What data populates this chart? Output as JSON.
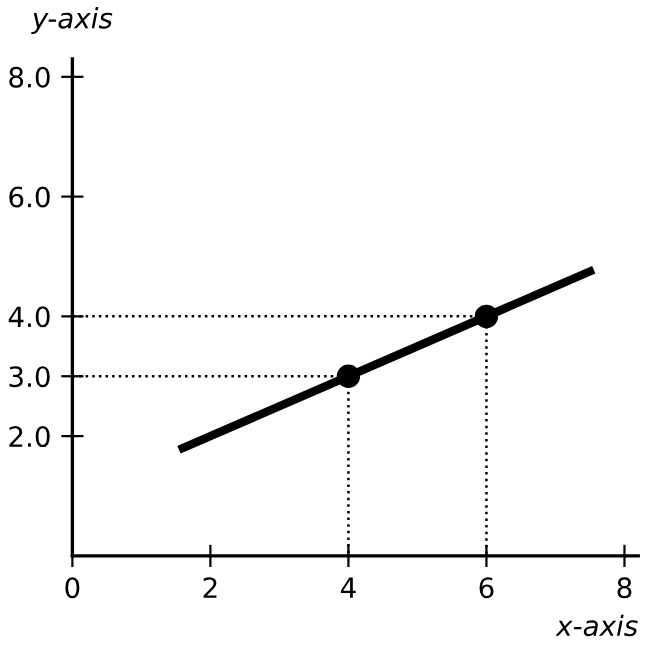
{
  "chart_data": {
    "type": "line",
    "xlabel": "x-axis",
    "ylabel": "y-axis",
    "xlim": [
      0,
      8.2
    ],
    "ylim": [
      0,
      8.3
    ],
    "xticks": [
      0,
      2,
      4,
      6,
      8
    ],
    "yticks": [
      {
        "value": 2,
        "label": "2.0"
      },
      {
        "value": 3,
        "label": "3.0"
      },
      {
        "value": 4,
        "label": "4.0"
      },
      {
        "value": 6,
        "label": "6.0"
      },
      {
        "value": 8,
        "label": "8.0"
      }
    ],
    "grid": false,
    "series": [
      {
        "color": "#000000",
        "x": [
          1.6,
          7.5
        ],
        "values": [
          1.8,
          4.75
        ],
        "line_style": "solid",
        "marker": "none"
      },
      {
        "color": "#000000",
        "x": [
          0,
          4,
          4
        ],
        "values": [
          3,
          3,
          0
        ],
        "line_style": "dotted",
        "marker": "none"
      },
      {
        "color": "#000000",
        "x": [
          0,
          6,
          6
        ],
        "values": [
          4,
          4,
          0
        ],
        "line_style": "dotted",
        "marker": "none"
      },
      {
        "type": "scatter",
        "color": "#000000",
        "x": [
          4,
          6
        ],
        "values": [
          3,
          4
        ],
        "marker": "circle"
      }
    ]
  }
}
